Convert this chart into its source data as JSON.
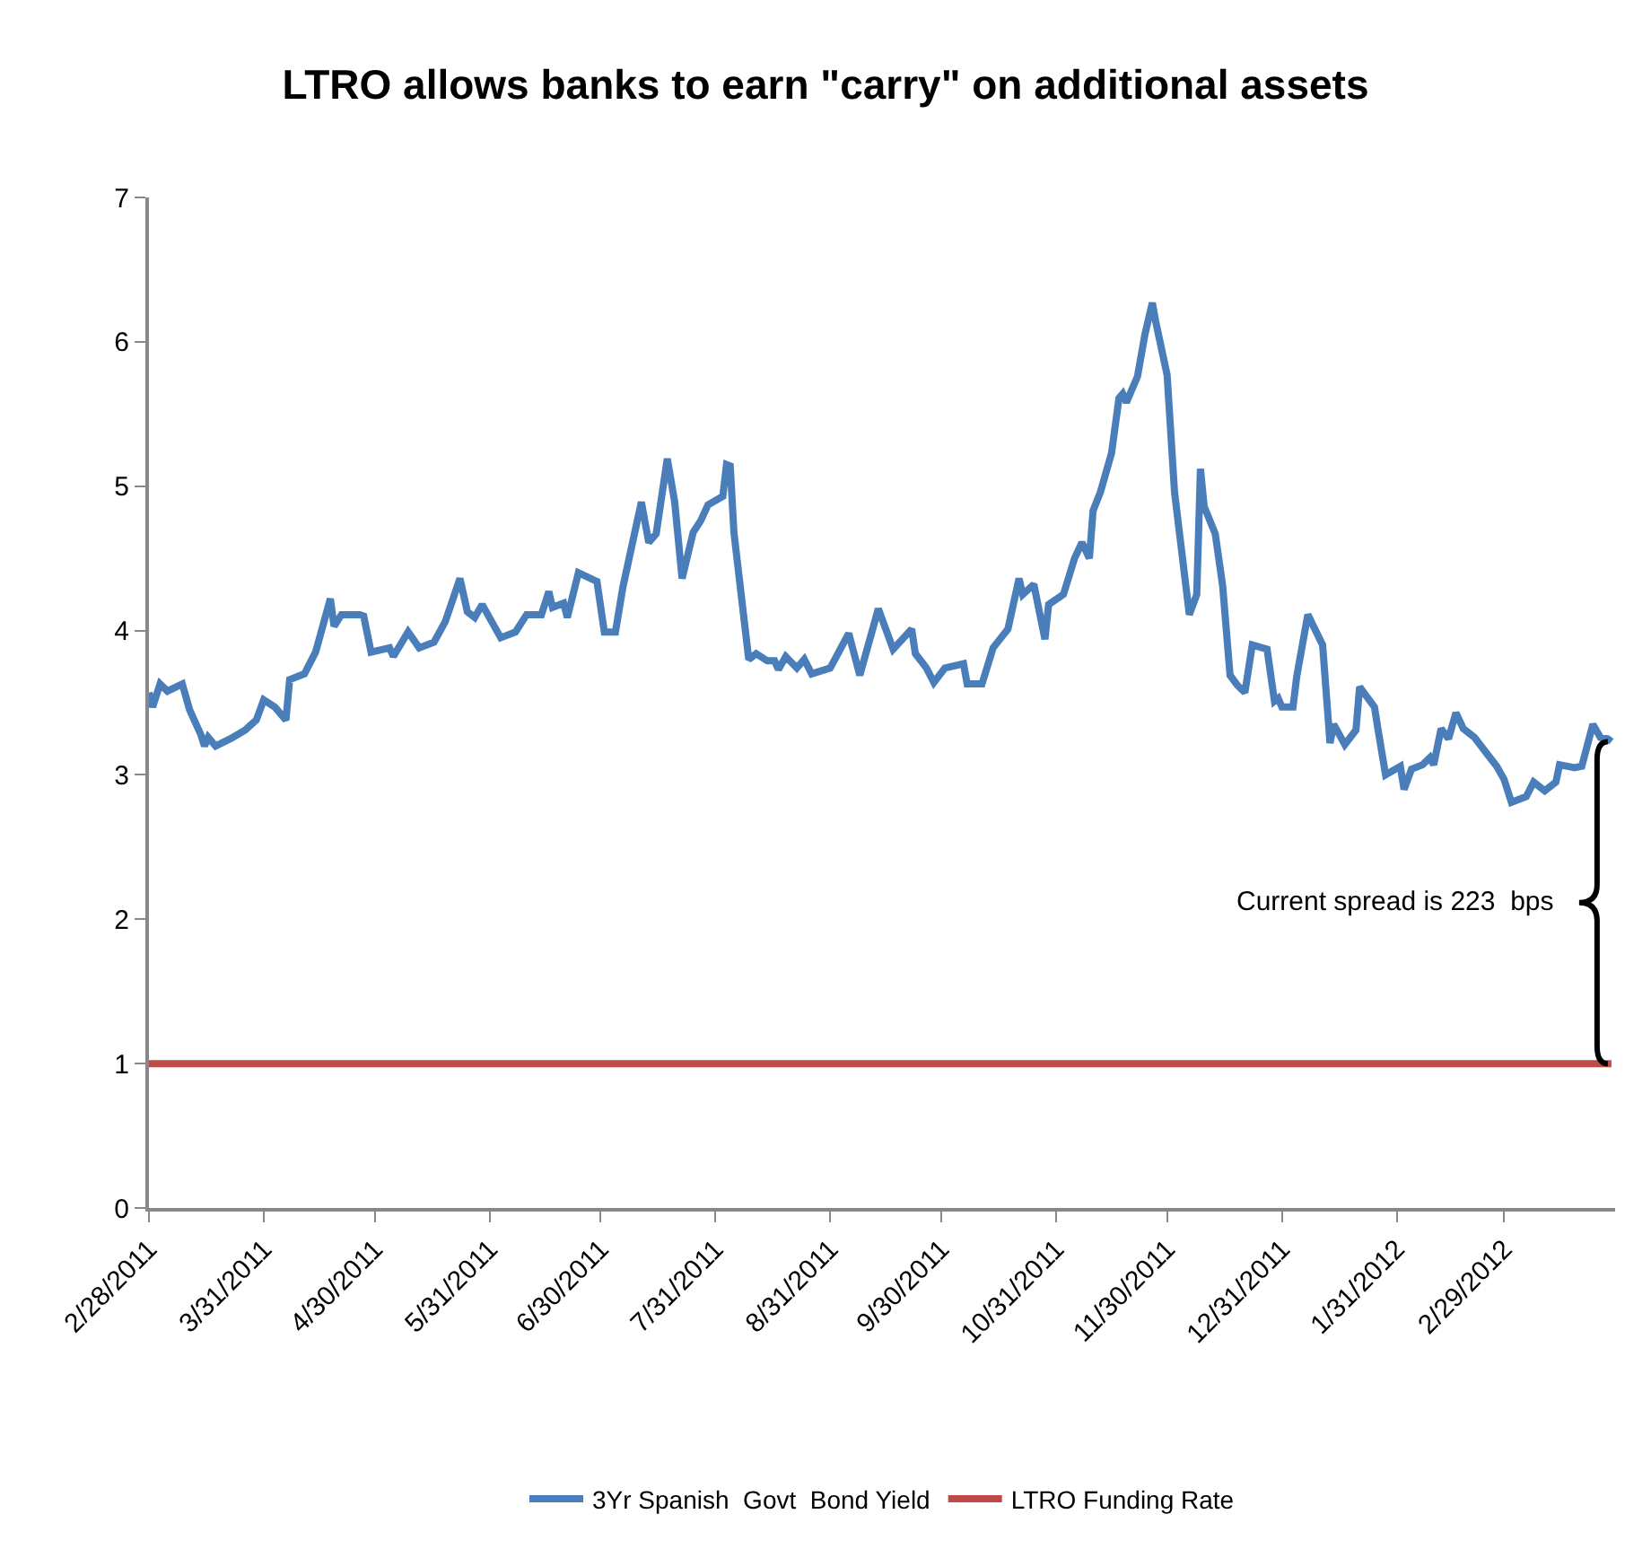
{
  "chart_data": {
    "type": "line",
    "title": "LTRO allows banks to earn \"carry\" on additional assets",
    "xlim": [
      "2011-02-28",
      "2012-03-30"
    ],
    "xticks": [
      {
        "value": "2011-02-28",
        "label": "2/28/2011"
      },
      {
        "value": "2011-03-31",
        "label": "3/31/2011"
      },
      {
        "value": "2011-04-30",
        "label": "4/30/2011"
      },
      {
        "value": "2011-05-31",
        "label": "5/31/2011"
      },
      {
        "value": "2011-06-30",
        "label": "6/30/2011"
      },
      {
        "value": "2011-07-31",
        "label": "7/31/2011"
      },
      {
        "value": "2011-08-31",
        "label": "8/31/2011"
      },
      {
        "value": "2011-09-30",
        "label": "9/30/2011"
      },
      {
        "value": "2011-10-31",
        "label": "10/31/2011"
      },
      {
        "value": "2011-11-30",
        "label": "11/30/2011"
      },
      {
        "value": "2011-12-31",
        "label": "12/31/2011"
      },
      {
        "value": "2012-01-31",
        "label": "1/31/2012"
      },
      {
        "value": "2012-02-29",
        "label": "2/29/2012"
      }
    ],
    "ylim": [
      0,
      7
    ],
    "yticks": [
      0,
      1,
      2,
      3,
      4,
      5,
      6,
      7
    ],
    "grid": false,
    "legend": "bottom",
    "marker": "none",
    "line_style": "solid",
    "series": [
      {
        "name": "3Yr Spanish  Govt  Bond Yield",
        "color": "#4a7ebb",
        "x": [
          "2011-02-28",
          "2011-03-01",
          "2011-03-03",
          "2011-03-05",
          "2011-03-09",
          "2011-03-11",
          "2011-03-14",
          "2011-03-15",
          "2011-03-16",
          "2011-03-18",
          "2011-03-22",
          "2011-03-26",
          "2011-03-29",
          "2011-03-31",
          "2011-04-03",
          "2011-04-06",
          "2011-04-07",
          "2011-04-11",
          "2011-04-14",
          "2011-04-18",
          "2011-04-19",
          "2011-04-21",
          "2011-04-26",
          "2011-04-27",
          "2011-04-29",
          "2011-05-04",
          "2011-05-05",
          "2011-05-09",
          "2011-05-12",
          "2011-05-16",
          "2011-05-19",
          "2011-05-23",
          "2011-05-25",
          "2011-05-27",
          "2011-05-29",
          "2011-06-03",
          "2011-06-07",
          "2011-06-10",
          "2011-06-14",
          "2011-06-16",
          "2011-06-17",
          "2011-06-20",
          "2011-06-21",
          "2011-06-24",
          "2011-06-29",
          "2011-07-01",
          "2011-07-04",
          "2011-07-06",
          "2011-07-11",
          "2011-07-13",
          "2011-07-15",
          "2011-07-18",
          "2011-07-20",
          "2011-07-22",
          "2011-07-25",
          "2011-07-27",
          "2011-07-29",
          "2011-08-02",
          "2011-08-03",
          "2011-08-04",
          "2011-08-05",
          "2011-08-09",
          "2011-08-11",
          "2011-08-14",
          "2011-08-16",
          "2011-08-17",
          "2011-08-19",
          "2011-08-22",
          "2011-08-24",
          "2011-08-26",
          "2011-08-31",
          "2011-09-05",
          "2011-09-08",
          "2011-09-13",
          "2011-09-17",
          "2011-09-22",
          "2011-09-23",
          "2011-09-26",
          "2011-09-28",
          "2011-10-01",
          "2011-10-06",
          "2011-10-07",
          "2011-10-11",
          "2011-10-14",
          "2011-10-18",
          "2011-10-21",
          "2011-10-22",
          "2011-10-25",
          "2011-10-28",
          "2011-10-29",
          "2011-11-02",
          "2011-11-05",
          "2011-11-07",
          "2011-11-09",
          "2011-11-10",
          "2011-11-12",
          "2011-11-15",
          "2011-11-17",
          "2011-11-18",
          "2011-11-19",
          "2011-11-22",
          "2011-11-24",
          "2011-11-26",
          "2011-11-27",
          "2011-11-30",
          "2011-12-02",
          "2011-12-06",
          "2011-12-08",
          "2011-12-09",
          "2011-12-10",
          "2011-12-13",
          "2011-12-15",
          "2011-12-17",
          "2011-12-19",
          "2011-12-21",
          "2011-12-23",
          "2011-12-27",
          "2011-12-29",
          "2011-12-30",
          "2011-12-31",
          "2012-01-03",
          "2012-01-04",
          "2012-01-07",
          "2012-01-11",
          "2012-01-13",
          "2012-01-14",
          "2012-01-17",
          "2012-01-20",
          "2012-01-21",
          "2012-01-25",
          "2012-01-26",
          "2012-01-28",
          "2012-02-01",
          "2012-02-02",
          "2012-02-04",
          "2012-02-07",
          "2012-02-09",
          "2012-02-10",
          "2012-02-12",
          "2012-02-14",
          "2012-02-16",
          "2012-02-18",
          "2012-02-21",
          "2012-02-24",
          "2012-02-27",
          "2012-02-29",
          "2012-03-02",
          "2012-03-06",
          "2012-03-08",
          "2012-03-11",
          "2012-03-14",
          "2012-03-15",
          "2012-03-19",
          "2012-03-21",
          "2012-03-24",
          "2012-03-26",
          "2012-03-28",
          "2012-03-29"
        ],
        "values": [
          3.57,
          3.47,
          3.63,
          3.58,
          3.63,
          3.45,
          3.28,
          3.2,
          3.26,
          3.2,
          3.25,
          3.31,
          3.38,
          3.52,
          3.47,
          3.38,
          3.66,
          3.7,
          3.85,
          4.22,
          4.03,
          4.11,
          4.11,
          4.1,
          3.85,
          3.88,
          3.82,
          3.99,
          3.88,
          3.92,
          4.06,
          4.36,
          4.13,
          4.09,
          4.18,
          3.95,
          3.99,
          4.11,
          4.11,
          4.27,
          4.16,
          4.19,
          4.09,
          4.4,
          4.34,
          3.99,
          3.99,
          4.3,
          4.89,
          4.61,
          4.67,
          5.19,
          4.89,
          4.36,
          4.68,
          4.76,
          4.87,
          4.93,
          5.15,
          5.14,
          4.68,
          3.8,
          3.84,
          3.79,
          3.79,
          3.73,
          3.82,
          3.74,
          3.8,
          3.7,
          3.74,
          3.98,
          3.69,
          4.15,
          3.87,
          4.01,
          3.84,
          3.74,
          3.64,
          3.74,
          3.77,
          3.63,
          3.63,
          3.88,
          4.01,
          4.36,
          4.25,
          4.32,
          3.94,
          4.18,
          4.25,
          4.5,
          4.61,
          4.5,
          4.83,
          4.96,
          5.23,
          5.61,
          5.64,
          5.58,
          5.76,
          6.05,
          6.27,
          6.13,
          5.77,
          4.96,
          4.11,
          4.25,
          5.12,
          4.86,
          4.67,
          4.31,
          3.69,
          3.62,
          3.57,
          3.9,
          3.87,
          3.51,
          3.53,
          3.47,
          3.47,
          3.68,
          4.11,
          3.9,
          3.22,
          3.35,
          3.21,
          3.31,
          3.61,
          3.47,
          3.31,
          3.0,
          3.06,
          2.9,
          3.04,
          3.07,
          3.12,
          3.07,
          3.32,
          3.25,
          3.43,
          3.32,
          3.26,
          3.16,
          3.06,
          2.97,
          2.81,
          2.85,
          2.95,
          2.89,
          2.95,
          3.07,
          3.05,
          3.06,
          3.35,
          3.26,
          3.25,
          3.23
        ]
      },
      {
        "name": "LTRO Funding Rate",
        "color": "#be4b48",
        "x": [
          "2011-02-28",
          "2012-03-29"
        ],
        "values": [
          1,
          1
        ]
      }
    ],
    "annotations": [
      "Current spread is 223  bps"
    ]
  }
}
